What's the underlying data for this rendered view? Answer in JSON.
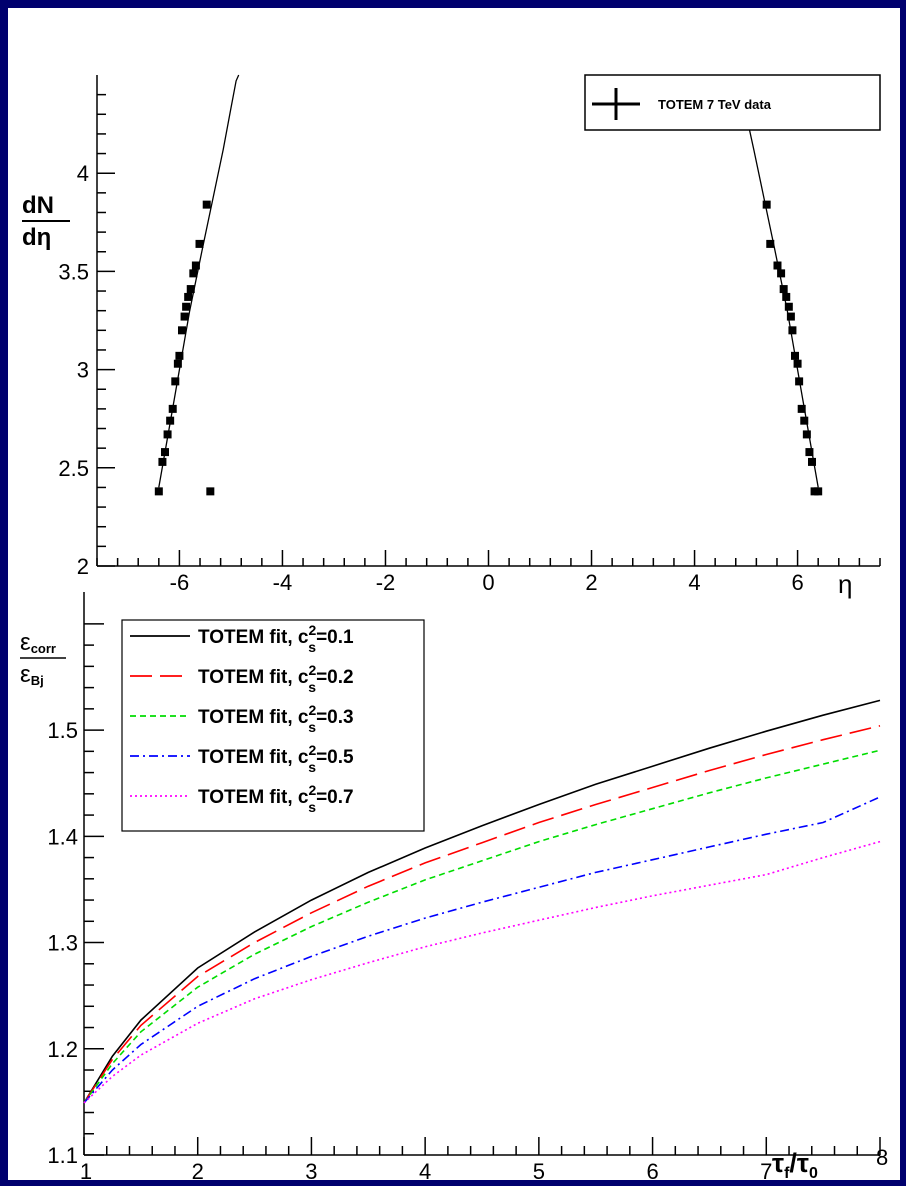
{
  "background_color": "#00006e",
  "chart_data": [
    {
      "type": "scatter",
      "xlim": [
        -7.6,
        7.6
      ],
      "ylim": [
        2,
        4.5
      ],
      "x_ticks": [
        -6,
        -4,
        -2,
        0,
        2,
        4,
        6
      ],
      "y_ticks": [
        2,
        2.5,
        3,
        3.5,
        4
      ],
      "x_tick_labels": [
        "-6",
        "-4",
        "-2",
        "0",
        "2",
        "4",
        "6"
      ],
      "y_tick_labels": [
        "2",
        "2.5",
        "3",
        "3.5",
        "4"
      ],
      "xlabel": "η",
      "ylabel_numerator": "dN",
      "ylabel_denominator": "dη",
      "legend": {
        "position": "top-right",
        "label": "TOTEM 7 TeV data"
      },
      "series": [
        {
          "name": "TOTEM 7 TeV data",
          "kind": "points",
          "color": "#000000",
          "x": [
            -6.4,
            -6.33,
            -6.28,
            -6.23,
            -6.18,
            -6.13,
            -6.08,
            -6.03,
            -6.0,
            -5.95,
            -5.9,
            -5.87,
            -5.83,
            -5.78,
            -5.73,
            -5.68,
            -5.61,
            -5.47,
            -5.4,
            5.4,
            5.47,
            5.61,
            5.68,
            5.73,
            5.78,
            5.83,
            5.87,
            5.9,
            5.95,
            6.0,
            6.03,
            6.08,
            6.13,
            6.18,
            6.23,
            6.28,
            6.33,
            6.4
          ],
          "y": [
            2.38,
            2.53,
            2.58,
            2.67,
            2.74,
            2.8,
            2.94,
            3.03,
            3.07,
            3.2,
            3.27,
            3.32,
            3.37,
            3.41,
            3.49,
            3.53,
            3.64,
            3.84,
            2.38,
            3.84,
            3.64,
            3.53,
            3.49,
            3.41,
            3.37,
            3.32,
            3.27,
            3.2,
            3.07,
            3.03,
            2.94,
            2.8,
            2.74,
            2.67,
            2.58,
            2.53,
            2.38,
            2.38
          ]
        },
        {
          "name": "",
          "kind": "curve",
          "color": "#000000",
          "x": [
            -6.4,
            -6.1,
            -5.8,
            -5.55,
            -5.35,
            -5.15,
            -5.0,
            -4.9,
            -4.85
          ],
          "y": [
            2.4,
            2.85,
            3.3,
            3.62,
            3.87,
            4.12,
            4.33,
            4.47,
            4.5
          ]
        },
        {
          "name": "",
          "kind": "curve",
          "color": "#000000",
          "x": [
            6.4,
            6.1,
            5.8,
            5.55,
            5.35,
            5.15,
            5.0
          ],
          "y": [
            2.4,
            2.85,
            3.3,
            3.62,
            3.87,
            4.12,
            4.3
          ]
        }
      ]
    },
    {
      "type": "line",
      "xlim": [
        1,
        8
      ],
      "ylim": [
        1.1,
        1.63
      ],
      "x_ticks": [
        1,
        2,
        3,
        4,
        5,
        6,
        7,
        8
      ],
      "y_ticks": [
        1.1,
        1.2,
        1.3,
        1.4,
        1.5
      ],
      "x_tick_labels": [
        "1",
        "2",
        "3",
        "4",
        "5",
        "6",
        "7",
        "8"
      ],
      "y_tick_labels": [
        "1.1",
        "1.2",
        "1.3",
        "1.4",
        "1.5"
      ],
      "xlabel": "τ_f/τ_0",
      "ylabel_numerator": "ε_corr",
      "ylabel_denominator": "ε_Bj",
      "legend": {
        "position": "top-left"
      },
      "series": [
        {
          "name": "TOTEM fit, c_s^2=0.1",
          "cs2": "0.1",
          "color": "#000000",
          "dash": "solid",
          "x": [
            1,
            1.25,
            1.5,
            2,
            2.5,
            3,
            3.5,
            4,
            4.5,
            5,
            5.5,
            6,
            6.5,
            7,
            7.5,
            8
          ],
          "y": [
            1.149,
            1.193,
            1.227,
            1.276,
            1.31,
            1.34,
            1.366,
            1.389,
            1.41,
            1.43,
            1.449,
            1.466,
            1.483,
            1.499,
            1.514,
            1.528
          ]
        },
        {
          "name": "TOTEM fit, c_s^2=0.2",
          "cs2": "0.2",
          "color": "#ff0000",
          "dash": "longdash",
          "x": [
            1,
            1.25,
            1.5,
            2,
            2.5,
            3,
            3.5,
            4,
            4.5,
            5,
            5.5,
            6,
            6.5,
            7,
            7.5,
            8
          ],
          "y": [
            1.149,
            1.19,
            1.222,
            1.268,
            1.3,
            1.328,
            1.353,
            1.375,
            1.394,
            1.413,
            1.43,
            1.446,
            1.462,
            1.477,
            1.491,
            1.504
          ]
        },
        {
          "name": "TOTEM fit, c_s^2=0.3",
          "cs2": "0.3",
          "color": "#00dd00",
          "dash": "dashed",
          "x": [
            1,
            1.25,
            1.5,
            2,
            2.5,
            3,
            3.5,
            4,
            4.5,
            5,
            5.5,
            6,
            6.5,
            7,
            7.5,
            8
          ],
          "y": [
            1.149,
            1.186,
            1.216,
            1.258,
            1.289,
            1.315,
            1.338,
            1.359,
            1.377,
            1.395,
            1.411,
            1.426,
            1.441,
            1.455,
            1.468,
            1.481
          ]
        },
        {
          "name": "TOTEM fit, c_s^2=0.5",
          "cs2": "0.5",
          "color": "#0000ff",
          "dash": "dashdot",
          "x": [
            1,
            1.25,
            1.5,
            2,
            2.5,
            3,
            3.5,
            4,
            4.5,
            5,
            5.5,
            6,
            6.5,
            7,
            7.5,
            8
          ],
          "y": [
            1.149,
            1.18,
            1.204,
            1.24,
            1.266,
            1.287,
            1.306,
            1.323,
            1.338,
            1.352,
            1.366,
            1.378,
            1.39,
            1.402,
            1.413,
            1.437
          ]
        },
        {
          "name": "TOTEM fit, c_s^2=0.7",
          "cs2": "0.7",
          "color": "#ff00ff",
          "dash": "dotted",
          "x": [
            1,
            1.25,
            1.5,
            2,
            2.5,
            3,
            3.5,
            4,
            4.5,
            5,
            5.5,
            6,
            6.5,
            7,
            7.5,
            8
          ],
          "y": [
            1.149,
            1.174,
            1.194,
            1.224,
            1.247,
            1.265,
            1.281,
            1.296,
            1.309,
            1.321,
            1.333,
            1.344,
            1.354,
            1.364,
            1.38,
            1.395
          ]
        }
      ]
    }
  ]
}
